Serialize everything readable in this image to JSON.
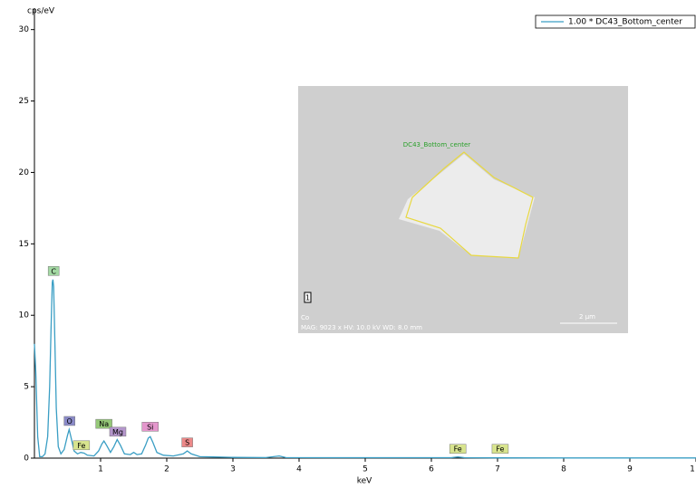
{
  "chart_data": {
    "type": "line",
    "y_label": "cps/eV",
    "x_label": "keV",
    "x": [
      0,
      0.02,
      0.05,
      0.08,
      0.12,
      0.16,
      0.2,
      0.23,
      0.25,
      0.27,
      0.28,
      0.29,
      0.31,
      0.33,
      0.36,
      0.4,
      0.45,
      0.5,
      0.525,
      0.55,
      0.6,
      0.65,
      0.7,
      0.75,
      0.8,
      0.9,
      0.97,
      1.02,
      1.05,
      1.09,
      1.15,
      1.2,
      1.25,
      1.3,
      1.36,
      1.45,
      1.5,
      1.55,
      1.62,
      1.68,
      1.72,
      1.75,
      1.79,
      1.85,
      1.95,
      2.1,
      2.25,
      2.31,
      2.37,
      2.5,
      2.7,
      3.0,
      3.5,
      3.7,
      3.8,
      4.5,
      6.3,
      6.4,
      6.5,
      7.0,
      8.0,
      10
    ],
    "series": [
      {
        "name": "1.00 * DC43_Bottom_center",
        "color": "#3a9ec4",
        "values": [
          8,
          6,
          1.5,
          0.1,
          0.1,
          0.3,
          1.5,
          5,
          9,
          12.3,
          12.5,
          12,
          8,
          3.5,
          0.8,
          0.3,
          0.6,
          1.6,
          2.0,
          1.5,
          0.5,
          0.3,
          0.4,
          0.35,
          0.2,
          0.15,
          0.5,
          1.0,
          1.2,
          0.9,
          0.4,
          0.8,
          1.3,
          0.9,
          0.3,
          0.25,
          0.4,
          0.25,
          0.3,
          0.9,
          1.4,
          1.5,
          1.1,
          0.4,
          0.2,
          0.15,
          0.3,
          0.5,
          0.3,
          0.1,
          0.08,
          0.05,
          0.04,
          0.15,
          0.04,
          0.03,
          0.03,
          0.08,
          0.03,
          0.02,
          0.01,
          0.01
        ]
      }
    ],
    "xlim": [
      0,
      10
    ],
    "xticks": [
      1,
      2,
      3,
      4,
      5,
      6,
      7,
      8,
      9,
      {
        "value": 10,
        "label": "1"
      }
    ],
    "ylim": [
      0,
      31.5
    ],
    "yticks": [
      0,
      5,
      10,
      15,
      20,
      25,
      30
    ],
    "legend": "top-right",
    "annotations": [
      {
        "text": "C",
        "x": 0.29,
        "y": 13.1,
        "color": "#a3d9a3"
      },
      {
        "text": "O",
        "x": 0.53,
        "y": 2.6,
        "color": "#8a8ac8"
      },
      {
        "text": "Fe",
        "x": 0.71,
        "y": 0.9,
        "color": "#d8e48e"
      },
      {
        "text": "Na",
        "x": 1.05,
        "y": 2.4,
        "color": "#95c878"
      },
      {
        "text": "Mg",
        "x": 1.26,
        "y": 1.85,
        "color": "#b496cc"
      },
      {
        "text": "Si",
        "x": 1.75,
        "y": 2.2,
        "color": "#e496cc"
      },
      {
        "text": "S",
        "x": 2.31,
        "y": 1.1,
        "color": "#ec8888"
      },
      {
        "text": "Fe",
        "x": 6.4,
        "y": 0.65,
        "color": "#d8e48e"
      },
      {
        "text": "Fe",
        "x": 7.04,
        "y": 0.65,
        "color": "#d8e48e"
      }
    ]
  },
  "inset": {
    "label": "DC43_Bottom_center",
    "marker": "1",
    "corner": "Co",
    "caption": "MAG: 9023 x  HV: 10.0 kV  WD: 8.0 mm",
    "scale": "2 µm"
  }
}
